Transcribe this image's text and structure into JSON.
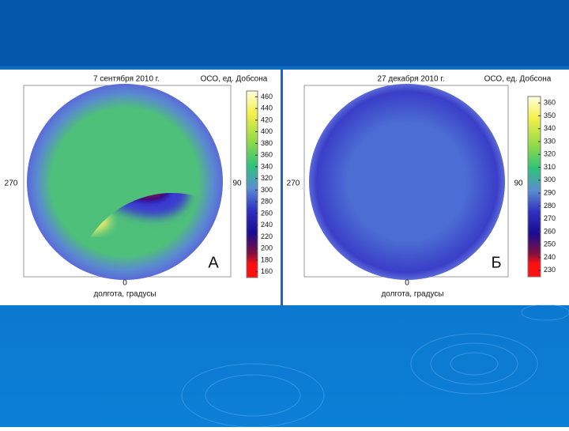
{
  "panels": [
    {
      "title": "7 сентября 2010 г.",
      "unit": "ОСО, ед. Добсона",
      "colorbar_ticks": [
        460,
        440,
        420,
        400,
        380,
        360,
        340,
        320,
        300,
        280,
        260,
        240,
        220,
        200,
        180,
        160
      ],
      "lon_left": "270",
      "lon_right": "90",
      "lon_bottom": "0",
      "xlabel": "долгота, градусы",
      "letter": "А"
    },
    {
      "title": "27 декабря 2010 г.",
      "unit": "ОСО, ед. Добсона",
      "colorbar_ticks": [
        360,
        350,
        340,
        330,
        320,
        310,
        300,
        290,
        280,
        270,
        260,
        250,
        240,
        230
      ],
      "lon_left": "270",
      "lon_right": "90",
      "lon_bottom": "0",
      "xlabel": "долгота, градусы",
      "letter": "Б"
    }
  ]
}
